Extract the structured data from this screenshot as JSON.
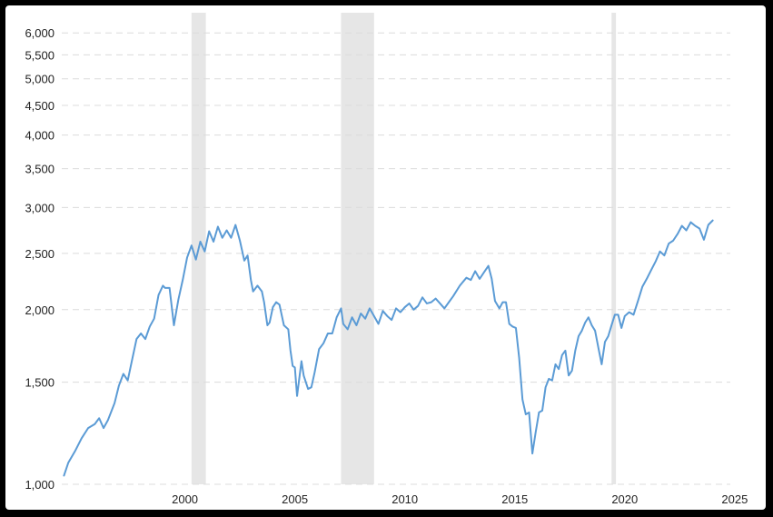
{
  "chart_data": {
    "type": "line",
    "title": "",
    "xlabel": "",
    "ylabel": "",
    "scale": "log",
    "grid": "horizontal dashed",
    "legend": "none",
    "x_ticks": [
      "2000",
      "2005",
      "2010",
      "2015",
      "2020",
      "2025"
    ],
    "y_ticks": [
      "1,000",
      "1,500",
      "2,000",
      "2,500",
      "3,000",
      "3,500",
      "4,000",
      "4,500",
      "5,000",
      "5,500",
      "6,000"
    ],
    "y_tick_values": [
      1000,
      1500,
      2000,
      2500,
      3000,
      3500,
      4000,
      4500,
      5000,
      5500,
      6000
    ],
    "x_tick_values": [
      2000,
      2005,
      2010,
      2015,
      2020,
      2025
    ],
    "xlim": [
      1994.4,
      2024.8
    ],
    "ylim": [
      1000,
      6500
    ],
    "line_color": "#5b9bd5",
    "recession_color": "#e6e6e6",
    "recessions": [
      [
        2000.3,
        2000.95
      ],
      [
        2007.1,
        2008.6
      ],
      [
        2019.4,
        2019.6
      ]
    ],
    "series": [
      {
        "points": [
          [
            1994.5,
            1035
          ],
          [
            1994.7,
            1090
          ],
          [
            1995.0,
            1140
          ],
          [
            1995.3,
            1200
          ],
          [
            1995.6,
            1250
          ],
          [
            1995.9,
            1270
          ],
          [
            1996.1,
            1300
          ],
          [
            1996.3,
            1250
          ],
          [
            1996.5,
            1290
          ],
          [
            1996.8,
            1380
          ],
          [
            1997.0,
            1480
          ],
          [
            1997.2,
            1550
          ],
          [
            1997.4,
            1510
          ],
          [
            1997.6,
            1640
          ],
          [
            1997.8,
            1780
          ],
          [
            1998.0,
            1820
          ],
          [
            1998.2,
            1780
          ],
          [
            1998.4,
            1870
          ],
          [
            1998.6,
            1930
          ],
          [
            1998.8,
            2120
          ],
          [
            1999.0,
            2200
          ],
          [
            1999.1,
            2180
          ],
          [
            1999.3,
            2180
          ],
          [
            1999.5,
            1880
          ],
          [
            1999.7,
            2080
          ],
          [
            1999.9,
            2250
          ],
          [
            2000.1,
            2460
          ],
          [
            2000.3,
            2580
          ],
          [
            2000.5,
            2440
          ],
          [
            2000.7,
            2620
          ],
          [
            2000.9,
            2520
          ],
          [
            2001.1,
            2730
          ],
          [
            2001.3,
            2620
          ],
          [
            2001.5,
            2780
          ],
          [
            2001.7,
            2660
          ],
          [
            2001.9,
            2740
          ],
          [
            2002.1,
            2660
          ],
          [
            2002.3,
            2800
          ],
          [
            2002.5,
            2630
          ],
          [
            2002.7,
            2430
          ],
          [
            2002.85,
            2480
          ],
          [
            2003.0,
            2250
          ],
          [
            2003.1,
            2150
          ],
          [
            2003.3,
            2200
          ],
          [
            2003.5,
            2150
          ],
          [
            2003.6,
            2060
          ],
          [
            2003.75,
            1880
          ],
          [
            2003.85,
            1900
          ],
          [
            2004.0,
            2020
          ],
          [
            2004.15,
            2060
          ],
          [
            2004.3,
            2040
          ],
          [
            2004.5,
            1880
          ],
          [
            2004.7,
            1850
          ],
          [
            2004.8,
            1700
          ],
          [
            2004.9,
            1600
          ],
          [
            2005.0,
            1590
          ],
          [
            2005.1,
            1420
          ],
          [
            2005.3,
            1630
          ],
          [
            2005.4,
            1540
          ],
          [
            2005.6,
            1460
          ],
          [
            2005.75,
            1470
          ],
          [
            2005.9,
            1560
          ],
          [
            2006.1,
            1710
          ],
          [
            2006.3,
            1750
          ],
          [
            2006.5,
            1820
          ],
          [
            2006.7,
            1820
          ],
          [
            2006.9,
            1940
          ],
          [
            2007.1,
            2010
          ],
          [
            2007.2,
            1890
          ],
          [
            2007.4,
            1850
          ],
          [
            2007.6,
            1940
          ],
          [
            2007.8,
            1880
          ],
          [
            2008.0,
            1970
          ],
          [
            2008.2,
            1930
          ],
          [
            2008.4,
            2010
          ],
          [
            2008.6,
            1950
          ],
          [
            2008.8,
            1890
          ],
          [
            2009.0,
            1990
          ],
          [
            2009.2,
            1950
          ],
          [
            2009.4,
            1920
          ],
          [
            2009.6,
            2010
          ],
          [
            2009.8,
            1980
          ],
          [
            2010.0,
            2020
          ],
          [
            2010.2,
            2050
          ],
          [
            2010.4,
            2000
          ],
          [
            2010.6,
            2030
          ],
          [
            2010.8,
            2100
          ],
          [
            2011.0,
            2050
          ],
          [
            2011.2,
            2060
          ],
          [
            2011.4,
            2090
          ],
          [
            2011.6,
            2050
          ],
          [
            2011.8,
            2010
          ],
          [
            2012.0,
            2060
          ],
          [
            2012.2,
            2110
          ],
          [
            2012.5,
            2200
          ],
          [
            2012.8,
            2270
          ],
          [
            2013.0,
            2250
          ],
          [
            2013.2,
            2330
          ],
          [
            2013.4,
            2260
          ],
          [
            2013.6,
            2320
          ],
          [
            2013.8,
            2380
          ],
          [
            2013.95,
            2260
          ],
          [
            2014.1,
            2070
          ],
          [
            2014.3,
            2010
          ],
          [
            2014.45,
            2060
          ],
          [
            2014.6,
            2060
          ],
          [
            2014.75,
            1890
          ],
          [
            2014.9,
            1870
          ],
          [
            2015.05,
            1860
          ],
          [
            2015.2,
            1650
          ],
          [
            2015.35,
            1400
          ],
          [
            2015.5,
            1320
          ],
          [
            2015.65,
            1330
          ],
          [
            2015.8,
            1130
          ],
          [
            2015.95,
            1230
          ],
          [
            2016.1,
            1330
          ],
          [
            2016.25,
            1340
          ],
          [
            2016.4,
            1470
          ],
          [
            2016.55,
            1520
          ],
          [
            2016.7,
            1510
          ],
          [
            2016.85,
            1610
          ],
          [
            2017.0,
            1580
          ],
          [
            2017.15,
            1670
          ],
          [
            2017.3,
            1700
          ],
          [
            2017.45,
            1540
          ],
          [
            2017.6,
            1570
          ],
          [
            2017.75,
            1700
          ],
          [
            2017.9,
            1800
          ],
          [
            2018.05,
            1840
          ],
          [
            2018.2,
            1900
          ],
          [
            2018.35,
            1940
          ],
          [
            2018.5,
            1880
          ],
          [
            2018.65,
            1840
          ],
          [
            2018.8,
            1720
          ],
          [
            2018.95,
            1610
          ],
          [
            2019.1,
            1760
          ],
          [
            2019.25,
            1800
          ],
          [
            2019.4,
            1880
          ],
          [
            2019.55,
            1960
          ],
          [
            2019.7,
            1960
          ],
          [
            2019.85,
            1860
          ],
          [
            2020.0,
            1950
          ],
          [
            2020.2,
            1980
          ],
          [
            2020.4,
            1960
          ],
          [
            2020.6,
            2070
          ],
          [
            2020.8,
            2190
          ],
          [
            2021.0,
            2260
          ],
          [
            2021.2,
            2340
          ],
          [
            2021.4,
            2420
          ],
          [
            2021.6,
            2520
          ],
          [
            2021.8,
            2480
          ],
          [
            2022.0,
            2600
          ],
          [
            2022.2,
            2630
          ],
          [
            2022.4,
            2700
          ],
          [
            2022.6,
            2790
          ],
          [
            2022.8,
            2740
          ],
          [
            2023.0,
            2830
          ],
          [
            2023.2,
            2790
          ],
          [
            2023.4,
            2760
          ],
          [
            2023.6,
            2640
          ],
          [
            2023.8,
            2800
          ],
          [
            2024.0,
            2850
          ]
        ]
      }
    ]
  }
}
